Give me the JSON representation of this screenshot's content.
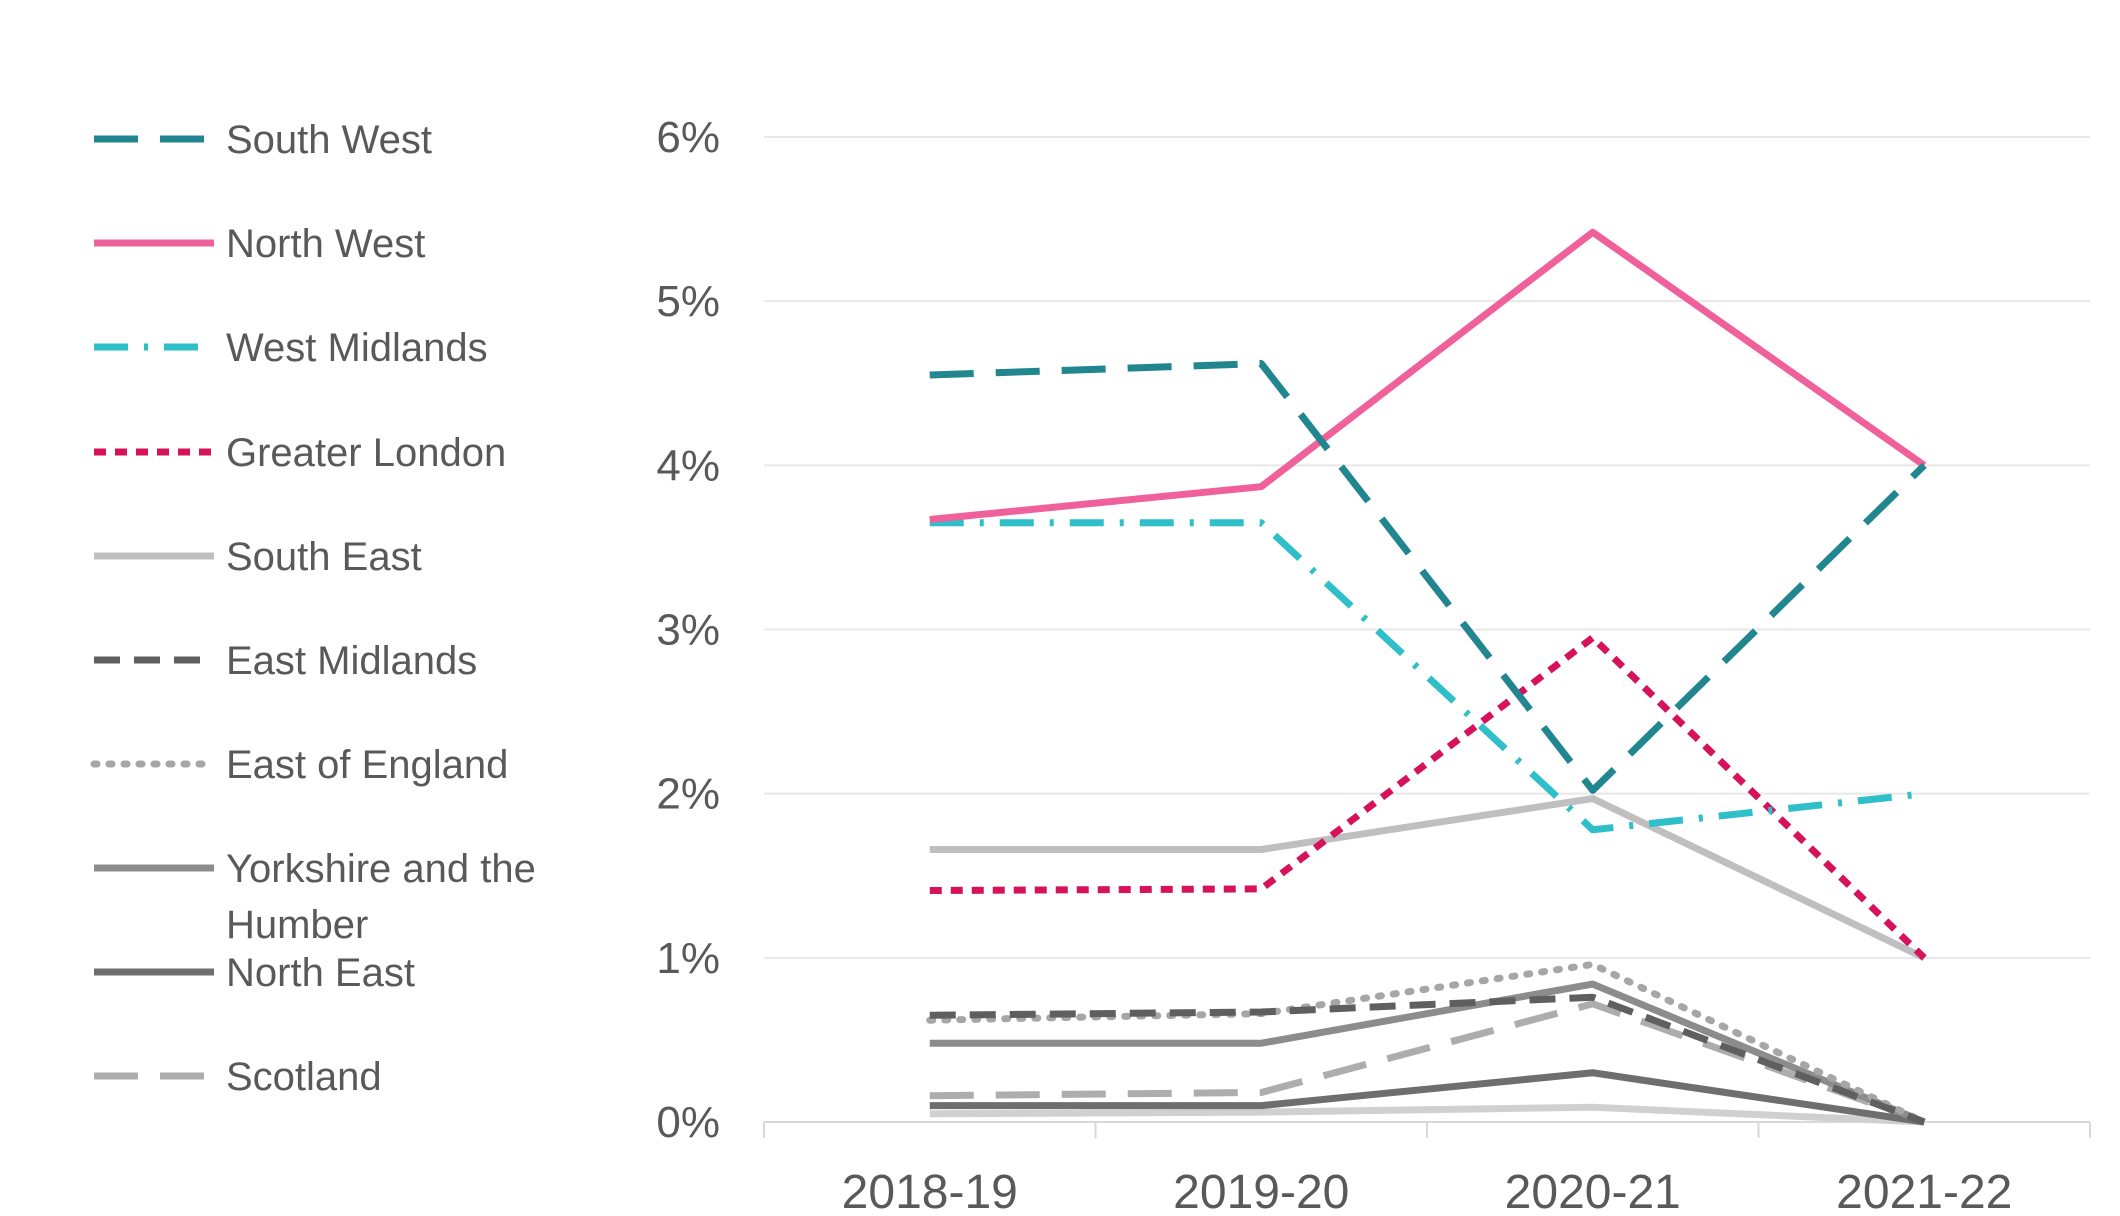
{
  "chart_data": {
    "type": "line",
    "categories": [
      "2018-19",
      "2019-20",
      "2020-21",
      "2021-22"
    ],
    "y_ticks": [
      "0%",
      "1%",
      "2%",
      "3%",
      "4%",
      "5%",
      "6%"
    ],
    "ylim": [
      0,
      6
    ],
    "y_unit": "%",
    "grid": true,
    "legend_position": "left",
    "title": "",
    "xlabel": "",
    "ylabel": "",
    "series": [
      {
        "name": "South West",
        "values": [
          4.55,
          4.62,
          2.02,
          4.0
        ],
        "color": "#21868F",
        "style": "long-dash",
        "legend_text": [
          "South West"
        ]
      },
      {
        "name": "North West",
        "values": [
          3.67,
          3.87,
          5.42,
          4.0
        ],
        "color": "#F0609A",
        "style": "solid",
        "legend_text": [
          "North West"
        ]
      },
      {
        "name": "West Midlands",
        "values": [
          3.65,
          3.65,
          1.78,
          2.0
        ],
        "color": "#2FBFC9",
        "style": "dash-dot",
        "legend_text": [
          "West Midlands"
        ]
      },
      {
        "name": "Greater London",
        "values": [
          1.41,
          1.42,
          2.95,
          1.0
        ],
        "color": "#D6125A",
        "style": "short-dash",
        "legend_text": [
          "Greater London"
        ]
      },
      {
        "name": "South East",
        "values": [
          1.66,
          1.66,
          1.97,
          1.0
        ],
        "color": "#BFBFBF",
        "style": "solid",
        "legend_text": [
          "South East"
        ]
      },
      {
        "name": "East Midlands",
        "values": [
          0.65,
          0.67,
          0.76,
          0.0
        ],
        "color": "#5F5F5F",
        "style": "dash",
        "legend_text": [
          "East Midlands"
        ]
      },
      {
        "name": "East of England",
        "values": [
          0.62,
          0.66,
          0.96,
          0.0
        ],
        "color": "#A6A6A6",
        "style": "dot",
        "legend_text": [
          "East of England"
        ]
      },
      {
        "name": "Yorkshire and the Humber",
        "values": [
          0.48,
          0.48,
          0.84,
          0.0
        ],
        "color": "#8C8C8C",
        "style": "solid",
        "legend_text": [
          "Yorkshire and the",
          "Humber"
        ]
      },
      {
        "name": "North East",
        "values": [
          0.1,
          0.1,
          0.3,
          0.0
        ],
        "color": "#6E6E6E",
        "style": "solid",
        "legend_text": [
          "North East"
        ]
      },
      {
        "name": "Scotland",
        "values": [
          0.16,
          0.18,
          0.72,
          0.0
        ],
        "color": "#ADADAD",
        "style": "long-dash",
        "legend_text": [
          "Scotland"
        ]
      },
      {
        "name": "",
        "values": [
          0.05,
          0.06,
          0.09,
          0.0
        ],
        "color": "#D0D0D0",
        "style": "solid",
        "legend_text": []
      }
    ]
  }
}
